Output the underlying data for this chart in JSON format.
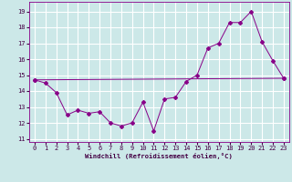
{
  "xlabel": "Windchill (Refroidissement éolien,°C)",
  "background_color": "#cce8e8",
  "grid_color": "#ffffff",
  "line_color": "#880088",
  "ylim": [
    10.8,
    19.6
  ],
  "xlim": [
    -0.5,
    23.5
  ],
  "yticks": [
    11,
    12,
    13,
    14,
    15,
    16,
    17,
    18,
    19
  ],
  "xticks": [
    0,
    1,
    2,
    3,
    4,
    5,
    6,
    7,
    8,
    9,
    10,
    11,
    12,
    13,
    14,
    15,
    16,
    17,
    18,
    19,
    20,
    21,
    22,
    23
  ],
  "series1_x": [
    0,
    1,
    2,
    3,
    4,
    5,
    6,
    7,
    8,
    9,
    10,
    11,
    12,
    13,
    14,
    15,
    16,
    17,
    18,
    19,
    20,
    21,
    22,
    23
  ],
  "series1_y": [
    14.7,
    14.5,
    13.9,
    12.5,
    12.8,
    12.6,
    12.7,
    12.0,
    11.8,
    12.0,
    13.3,
    11.5,
    13.5,
    13.6,
    14.6,
    15.0,
    16.7,
    17.0,
    18.3,
    18.3,
    19.0,
    17.1,
    15.9,
    14.8
  ],
  "series2_x": [
    0,
    23
  ],
  "series2_y": [
    14.7,
    14.8
  ],
  "figwidth": 3.2,
  "figheight": 2.0,
  "dpi": 100
}
